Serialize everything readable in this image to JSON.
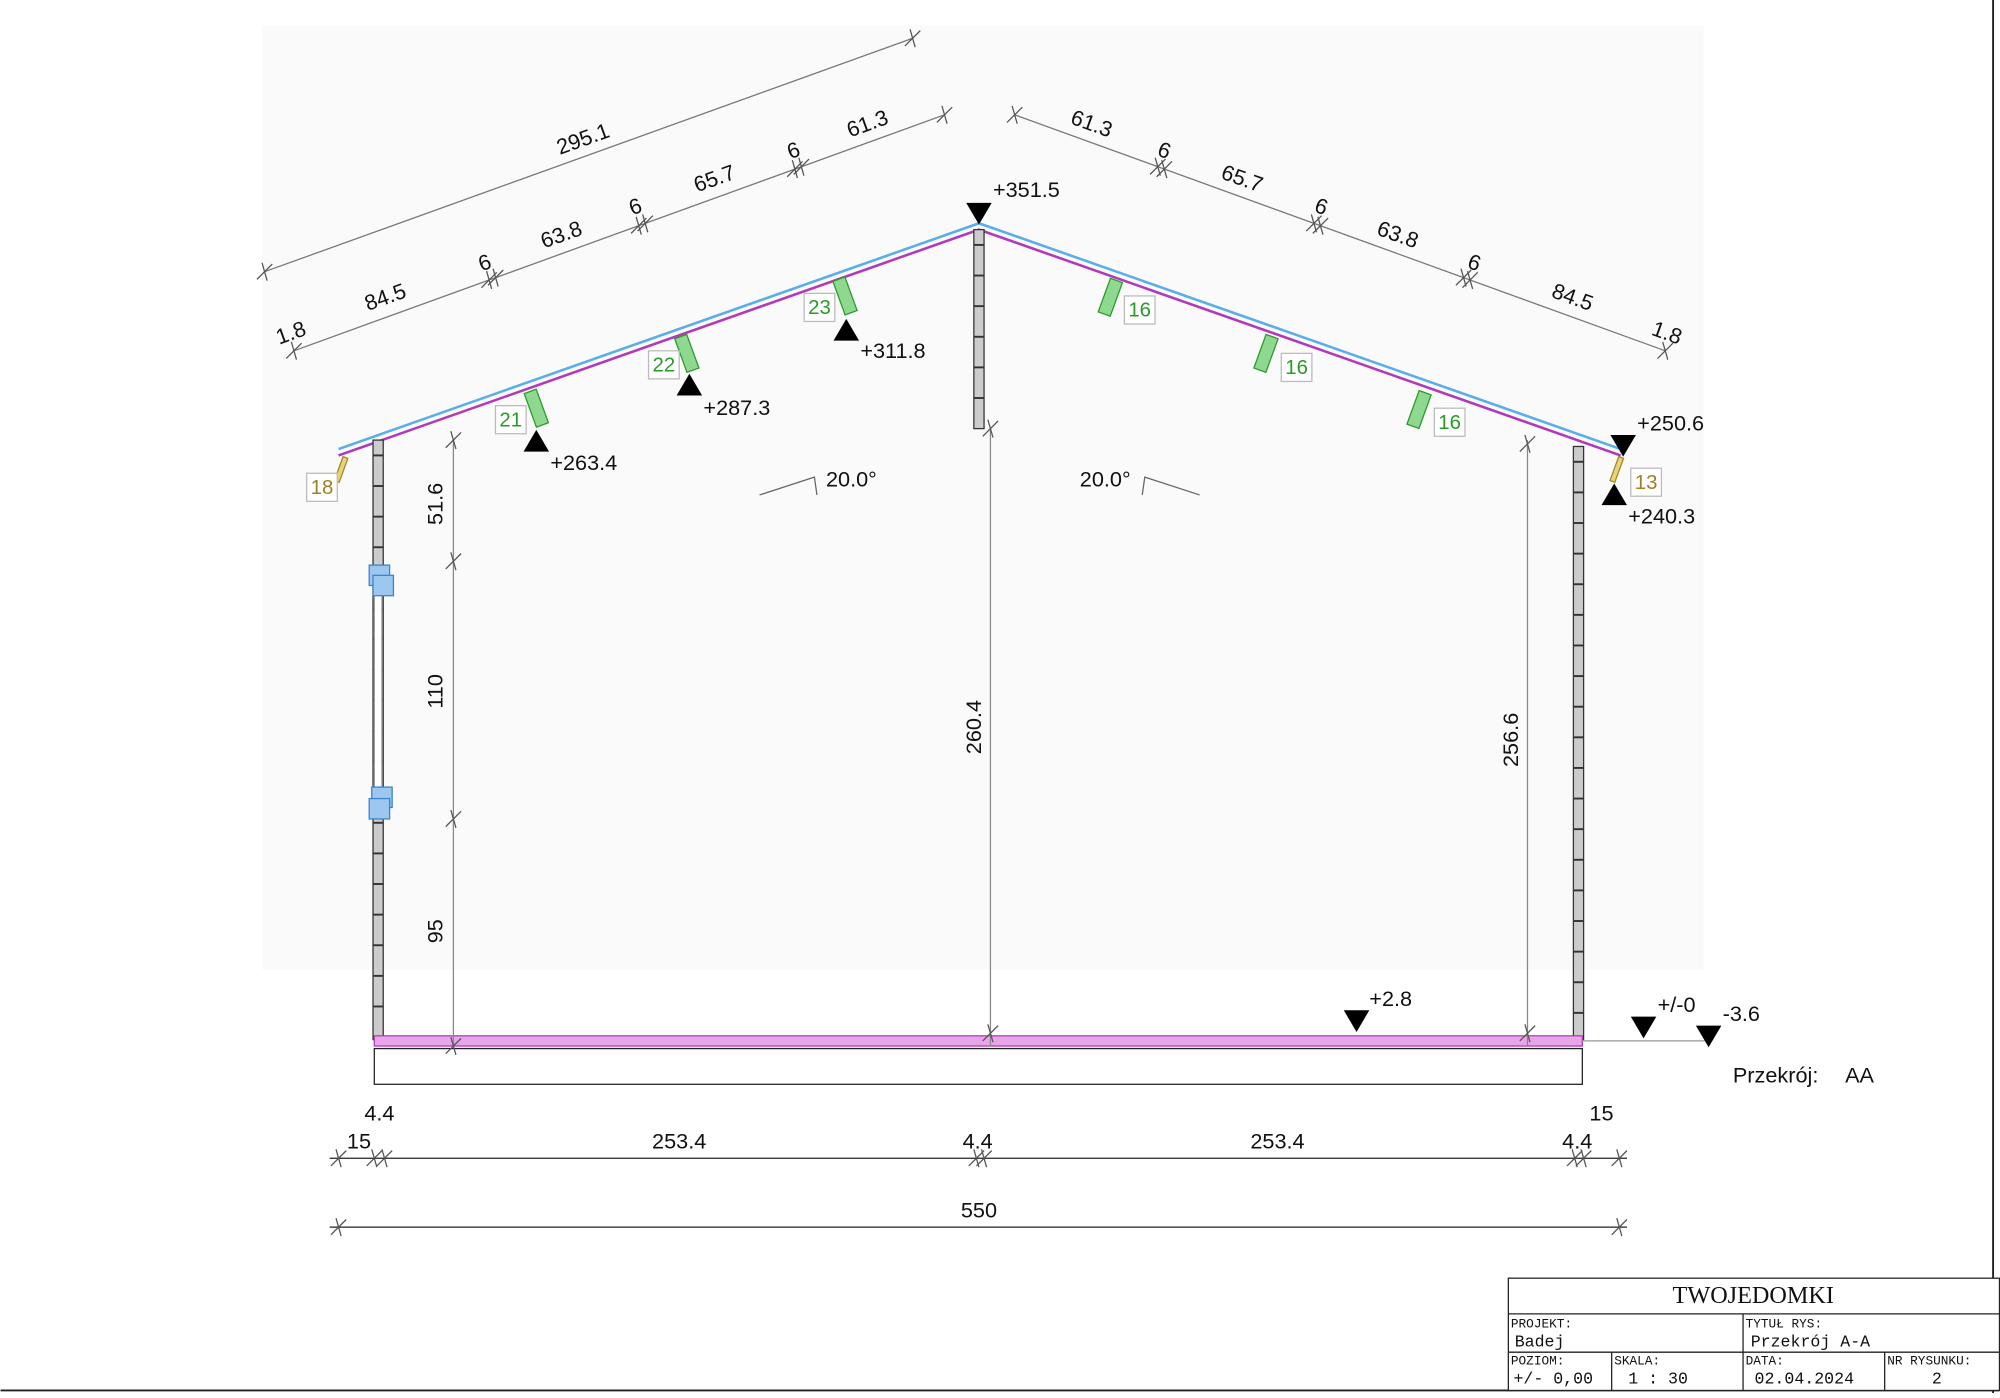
{
  "dimensions": {
    "roof_left": [
      "1.8",
      "84.5",
      "6",
      "63.8",
      "6",
      "65.7",
      "6",
      "61.3"
    ],
    "roof_left_total": "295.1",
    "roof_right": [
      "61.3",
      "6",
      "65.7",
      "6",
      "63.8",
      "6",
      "84.5",
      "1.8"
    ],
    "wall_left": [
      "51.6",
      "110",
      "95"
    ],
    "center_height": "260.4",
    "right_height": "256.6",
    "bottom_chain": [
      "4.4",
      "15",
      "253.4",
      "4.4",
      "253.4",
      "4.4",
      "15"
    ],
    "overall": "550"
  },
  "levels": [
    "+351.5",
    "+311.8",
    "+287.3",
    "+263.4",
    "+250.6",
    "+240.3",
    "+2.8",
    "+/-0",
    "-3.6"
  ],
  "angles": [
    "20.0°",
    "20.0°"
  ],
  "tags": [
    "18",
    "21",
    "22",
    "23",
    "16",
    "16",
    "16",
    "13"
  ],
  "section_label": {
    "caption": "Przekrój:",
    "name": "AA"
  },
  "title_block": {
    "company": "TWOJEDOMKI",
    "project_label": "PROJEKT:",
    "project": "Badej",
    "drawing_label": "TYTUŁ RYS:",
    "drawing": "Przekrój A-A",
    "level_label": "POZIOM:",
    "level": "+/- 0,00",
    "scale_label": "SKALA:",
    "scale": "1 : 30",
    "date_label": "DATA:",
    "date": "02.04.2024",
    "number_label": "NR RYSUNKU:",
    "number": "2"
  }
}
